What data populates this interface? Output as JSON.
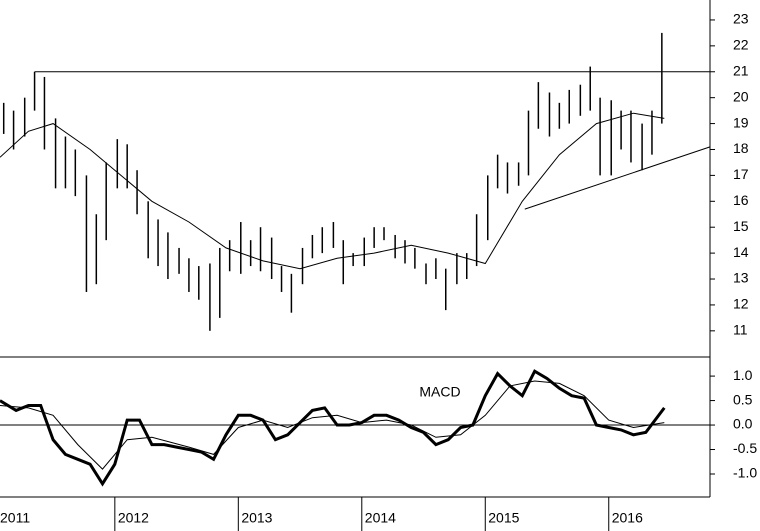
{
  "chart_data": [
    {
      "type": "ohlc",
      "xlim": [
        2011.07,
        2016.82
      ],
      "ylim": [
        9.99,
        23.77
      ],
      "yticks": [
        11,
        12,
        13,
        14,
        15,
        16,
        17,
        18,
        19,
        20,
        21,
        22,
        23
      ],
      "price": {
        "x": [
          2011.1,
          2011.18,
          2011.27,
          2011.35,
          2011.43,
          2011.52,
          2011.6,
          2011.68,
          2011.77,
          2011.85,
          2011.93,
          2012.02,
          2012.1,
          2012.18,
          2012.27,
          2012.35,
          2012.43,
          2012.52,
          2012.6,
          2012.68,
          2012.77,
          2012.85,
          2012.93,
          2013.02,
          2013.1,
          2013.18,
          2013.27,
          2013.35,
          2013.43,
          2013.52,
          2013.6,
          2013.68,
          2013.77,
          2013.85,
          2013.93,
          2014.02,
          2014.1,
          2014.18,
          2014.27,
          2014.35,
          2014.43,
          2014.52,
          2014.6,
          2014.68,
          2014.77,
          2014.85,
          2014.93,
          2015.02,
          2015.1,
          2015.18,
          2015.27,
          2015.35,
          2015.43,
          2015.52,
          2015.6,
          2015.68,
          2015.77,
          2015.85,
          2015.93,
          2016.02,
          2016.1,
          2016.18,
          2016.27,
          2016.35,
          2016.43
        ],
        "high": [
          19.8,
          19.5,
          20.0,
          21.0,
          20.8,
          19.2,
          18.5,
          18.0,
          17.0,
          15.5,
          17.5,
          18.4,
          18.2,
          17.2,
          16.0,
          15.3,
          14.8,
          14.2,
          13.8,
          13.5,
          13.6,
          14.2,
          14.5,
          15.2,
          14.5,
          15.0,
          14.6,
          13.5,
          13.2,
          14.2,
          14.7,
          15.0,
          15.2,
          14.5,
          14.0,
          14.6,
          15.0,
          15.0,
          14.7,
          14.5,
          14.2,
          13.6,
          13.8,
          13.4,
          14.0,
          14.0,
          15.5,
          17.0,
          17.8,
          17.5,
          17.5,
          19.5,
          20.6,
          20.2,
          19.8,
          20.3,
          20.5,
          21.2,
          20.0,
          19.9,
          19.5,
          19.5,
          19.0,
          19.5,
          22.5
        ],
        "low": [
          18.6,
          18.0,
          18.5,
          19.5,
          18.0,
          16.5,
          16.5,
          16.2,
          12.5,
          12.8,
          14.5,
          16.5,
          16.5,
          15.5,
          13.8,
          13.5,
          13.0,
          13.2,
          12.5,
          12.2,
          11.0,
          11.5,
          13.3,
          13.2,
          13.5,
          13.3,
          13.0,
          12.5,
          11.7,
          12.8,
          13.8,
          14.0,
          14.2,
          12.8,
          13.5,
          13.5,
          14.2,
          14.5,
          13.8,
          13.6,
          13.4,
          12.8,
          13.0,
          11.8,
          12.8,
          13.0,
          13.5,
          14.5,
          16.5,
          16.3,
          16.6,
          17.0,
          18.8,
          18.5,
          18.8,
          19.0,
          19.3,
          19.5,
          17.0,
          17.0,
          18.0,
          17.5,
          17.2,
          17.8,
          19.0
        ]
      },
      "lines": [
        {
          "x": [
            2011.07,
            2011.3,
            2011.5,
            2011.8,
            2012.0,
            2012.3,
            2012.6,
            2012.9,
            2013.2,
            2013.5,
            2013.8,
            2014.1,
            2014.4,
            2014.7,
            2015.0,
            2015.3,
            2015.6,
            2015.9,
            2016.2,
            2016.45
          ],
          "values": [
            17.7,
            18.7,
            19.0,
            18.0,
            17.2,
            16.0,
            15.2,
            14.2,
            13.7,
            13.4,
            13.8,
            14.0,
            14.3,
            14.0,
            13.6,
            16.0,
            17.8,
            19.0,
            19.4,
            19.2
          ]
        },
        {
          "x": [
            2011.35,
            2016.82
          ],
          "values": [
            21,
            21
          ]
        },
        {
          "x": [
            2015.32,
            2016.82
          ],
          "values": [
            15.7,
            18.1
          ]
        }
      ]
    },
    {
      "type": "line",
      "title": "MACD",
      "xlim": [
        2011.07,
        2016.82
      ],
      "ylim": [
        -1.47,
        1.39
      ],
      "xticks": [
        2011,
        2012,
        2013,
        2014,
        2015,
        2016
      ],
      "yticks": [
        {
          "value": -1,
          "label": "-1.0"
        },
        -0.5,
        {
          "value": 0,
          "label": "0.0"
        },
        0.5,
        {
          "value": 1,
          "label": "1.0"
        }
      ],
      "baseline": 0,
      "series": [
        {
          "width": 3,
          "x": [
            2011.07,
            2011.2,
            2011.3,
            2011.4,
            2011.5,
            2011.6,
            2011.7,
            2011.8,
            2011.9,
            2012.0,
            2012.1,
            2012.2,
            2012.3,
            2012.4,
            2012.5,
            2012.6,
            2012.7,
            2012.8,
            2012.9,
            2013.0,
            2013.1,
            2013.2,
            2013.3,
            2013.4,
            2013.5,
            2013.6,
            2013.7,
            2013.8,
            2013.9,
            2014.0,
            2014.1,
            2014.2,
            2014.3,
            2014.4,
            2014.5,
            2014.6,
            2014.7,
            2014.8,
            2014.9,
            2015.0,
            2015.1,
            2015.2,
            2015.3,
            2015.4,
            2015.5,
            2015.6,
            2015.7,
            2015.8,
            2015.9,
            2016.0,
            2016.1,
            2016.2,
            2016.3,
            2016.45
          ],
          "values": [
            0.5,
            0.3,
            0.4,
            0.4,
            -0.3,
            -0.6,
            -0.7,
            -0.8,
            -1.2,
            -0.8,
            0.1,
            0.1,
            -0.4,
            -0.4,
            -0.45,
            -0.5,
            -0.55,
            -0.7,
            -0.2,
            0.2,
            0.2,
            0.1,
            -0.3,
            -0.2,
            0.05,
            0.3,
            0.35,
            0.0,
            0.0,
            0.05,
            0.2,
            0.2,
            0.1,
            -0.05,
            -0.15,
            -0.4,
            -0.3,
            -0.05,
            0.0,
            0.6,
            1.05,
            0.8,
            0.6,
            1.1,
            0.95,
            0.75,
            0.6,
            0.55,
            0.0,
            -0.05,
            -0.1,
            -0.2,
            -0.15,
            0.35
          ]
        },
        {
          "width": 1,
          "x": [
            2011.07,
            2011.3,
            2011.5,
            2011.7,
            2011.9,
            2012.1,
            2012.3,
            2012.6,
            2012.8,
            2013.0,
            2013.2,
            2013.4,
            2013.6,
            2013.8,
            2014.0,
            2014.2,
            2014.4,
            2014.6,
            2014.8,
            2015.0,
            2015.2,
            2015.4,
            2015.6,
            2015.8,
            2016.0,
            2016.2,
            2016.45
          ],
          "values": [
            0.4,
            0.35,
            0.2,
            -0.4,
            -0.9,
            -0.3,
            -0.25,
            -0.45,
            -0.6,
            -0.05,
            0.1,
            -0.05,
            0.15,
            0.2,
            0.05,
            0.1,
            0.0,
            -0.25,
            -0.2,
            0.2,
            0.8,
            0.9,
            0.85,
            0.6,
            0.1,
            -0.05,
            0.05
          ]
        }
      ]
    }
  ]
}
